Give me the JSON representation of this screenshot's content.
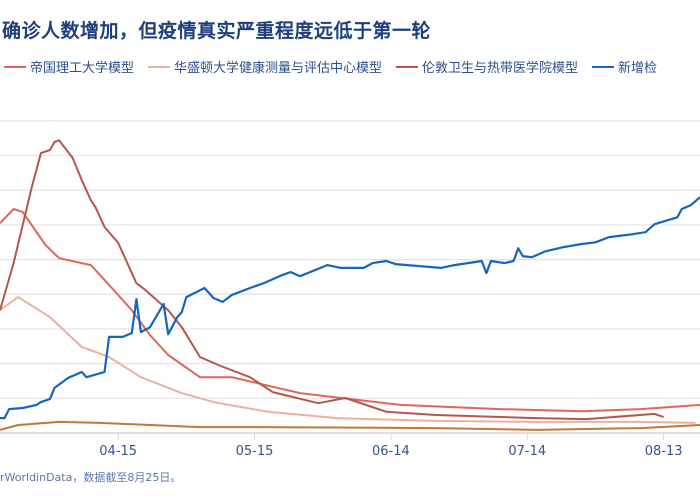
{
  "title": "确诊人数增加，但疫情真实严重程度远低于第一轮",
  "source": "rWorldinData，数据截至8月25日。",
  "chart_data": {
    "type": "line",
    "title": "确诊人数增加，但疫情真实严重程度远低于第一轮",
    "xlabel": "",
    "ylabel": "",
    "x_ticks": [
      "04-15",
      "05-15",
      "06-14",
      "07-14",
      "08-13"
    ],
    "xlim": [
      "03-20",
      "08-21"
    ],
    "ylim": [
      0,
      9.4
    ],
    "y_gridlines": [
      1,
      2,
      3,
      4,
      5,
      6,
      7,
      8,
      9
    ],
    "grid": true,
    "legend_position": "top",
    "series": [
      {
        "name": "帝国理工大学模型",
        "color": "#e0675b",
        "points": [
          [
            "03-20",
            6.05
          ],
          [
            "03-23",
            6.46
          ],
          [
            "03-25",
            6.37
          ],
          [
            "03-30",
            5.42
          ],
          [
            "04-02",
            5.04
          ],
          [
            "04-09",
            4.84
          ],
          [
            "04-13",
            4.27
          ],
          [
            "04-18",
            3.54
          ],
          [
            "04-22",
            2.82
          ],
          [
            "04-26",
            2.25
          ],
          [
            "05-03",
            1.61
          ],
          [
            "05-10",
            1.61
          ],
          [
            "05-25",
            1.15
          ],
          [
            "06-16",
            0.81
          ],
          [
            "07-08",
            0.69
          ],
          [
            "07-26",
            0.63
          ],
          [
            "08-08",
            0.69
          ],
          [
            "08-21",
            0.81
          ]
        ]
      },
      {
        "name": "华盛顿大学健康测量与评估中心模型",
        "color": "#ebb0a3",
        "points": [
          [
            "03-20",
            3.54
          ],
          [
            "03-24",
            3.92
          ],
          [
            "03-31",
            3.34
          ],
          [
            "04-07",
            2.48
          ],
          [
            "04-13",
            2.19
          ],
          [
            "04-20",
            1.61
          ],
          [
            "04-29",
            1.15
          ],
          [
            "05-06",
            0.89
          ],
          [
            "05-18",
            0.61
          ],
          [
            "06-02",
            0.43
          ],
          [
            "06-24",
            0.35
          ],
          [
            "07-16",
            0.32
          ],
          [
            "08-08",
            0.32
          ],
          [
            "08-20",
            0.29
          ]
        ]
      },
      {
        "name": "伦敦卫生与热带医学院模型",
        "color": "#b5574a",
        "points": [
          [
            "03-20",
            3.54
          ],
          [
            "03-23",
            4.9
          ],
          [
            "03-27",
            7.09
          ],
          [
            "03-29",
            8.07
          ],
          [
            "03-31",
            8.16
          ],
          [
            "04-01",
            8.39
          ],
          [
            "04-02",
            8.44
          ],
          [
            "04-04",
            8.1
          ],
          [
            "04-05",
            7.93
          ],
          [
            "04-07",
            7.29
          ],
          [
            "04-09",
            6.71
          ],
          [
            "04-10",
            6.51
          ],
          [
            "04-12",
            5.94
          ],
          [
            "04-15",
            5.48
          ],
          [
            "04-19",
            4.32
          ],
          [
            "04-21",
            4.12
          ],
          [
            "04-26",
            3.54
          ],
          [
            "04-29",
            3.05
          ],
          [
            "05-03",
            2.19
          ],
          [
            "05-07",
            1.96
          ],
          [
            "05-14",
            1.61
          ],
          [
            "05-16",
            1.44
          ],
          [
            "05-19",
            1.18
          ],
          [
            "05-29",
            0.86
          ],
          [
            "06-04",
            1.01
          ],
          [
            "06-13",
            0.61
          ],
          [
            "06-24",
            0.52
          ],
          [
            "07-16",
            0.43
          ],
          [
            "07-27",
            0.4
          ],
          [
            "08-11",
            0.55
          ],
          [
            "08-13",
            0.46
          ]
        ]
      },
      {
        "name": "新增检",
        "color": "#1565c0",
        "points": [
          [
            "03-20",
            0.43
          ],
          [
            "03-21",
            0.43
          ],
          [
            "03-22",
            0.69
          ],
          [
            "03-25",
            0.72
          ],
          [
            "03-28",
            0.81
          ],
          [
            "03-29",
            0.89
          ],
          [
            "03-31",
            0.98
          ],
          [
            "04-01",
            1.3
          ],
          [
            "04-04",
            1.59
          ],
          [
            "04-07",
            1.76
          ],
          [
            "04-08",
            1.61
          ],
          [
            "04-12",
            1.76
          ],
          [
            "04-13",
            2.77
          ],
          [
            "04-16",
            2.77
          ],
          [
            "04-18",
            2.88
          ],
          [
            "04-19",
            3.86
          ],
          [
            "04-20",
            2.91
          ],
          [
            "04-22",
            3.05
          ],
          [
            "04-25",
            3.72
          ],
          [
            "04-26",
            2.85
          ],
          [
            "04-28",
            3.34
          ],
          [
            "04-29",
            3.49
          ],
          [
            "04-30",
            3.92
          ],
          [
            "05-04",
            4.18
          ],
          [
            "05-06",
            3.89
          ],
          [
            "05-08",
            3.78
          ],
          [
            "05-10",
            3.98
          ],
          [
            "05-14",
            4.18
          ],
          [
            "05-17",
            4.32
          ],
          [
            "05-21",
            4.55
          ],
          [
            "05-23",
            4.64
          ],
          [
            "05-25",
            4.52
          ],
          [
            "05-31",
            4.84
          ],
          [
            "06-03",
            4.76
          ],
          [
            "06-08",
            4.76
          ],
          [
            "06-10",
            4.9
          ],
          [
            "06-13",
            4.96
          ],
          [
            "06-15",
            4.87
          ],
          [
            "06-25",
            4.76
          ],
          [
            "06-28",
            4.84
          ],
          [
            "07-04",
            4.96
          ],
          [
            "07-05",
            4.61
          ],
          [
            "07-06",
            4.96
          ],
          [
            "07-09",
            4.9
          ],
          [
            "07-11",
            4.96
          ],
          [
            "07-12",
            5.33
          ],
          [
            "07-13",
            5.1
          ],
          [
            "07-15",
            5.07
          ],
          [
            "07-18",
            5.24
          ],
          [
            "07-22",
            5.36
          ],
          [
            "07-26",
            5.45
          ],
          [
            "07-29",
            5.5
          ],
          [
            "08-01",
            5.65
          ],
          [
            "08-06",
            5.73
          ],
          [
            "08-09",
            5.79
          ],
          [
            "08-11",
            6.02
          ],
          [
            "08-16",
            6.22
          ],
          [
            "08-17",
            6.46
          ],
          [
            "08-19",
            6.57
          ],
          [
            "08-21",
            6.8
          ]
        ]
      },
      {
        "color": "#c0773a",
        "points": [
          [
            "03-20",
            0.09
          ],
          [
            "03-24",
            0.23
          ],
          [
            "04-02",
            0.32
          ],
          [
            "04-11",
            0.29
          ],
          [
            "04-22",
            0.23
          ],
          [
            "05-03",
            0.17
          ],
          [
            "05-14",
            0.17
          ],
          [
            "06-24",
            0.14
          ],
          [
            "07-16",
            0.09
          ],
          [
            "08-08",
            0.14
          ],
          [
            "08-21",
            0.23
          ]
        ]
      }
    ]
  }
}
